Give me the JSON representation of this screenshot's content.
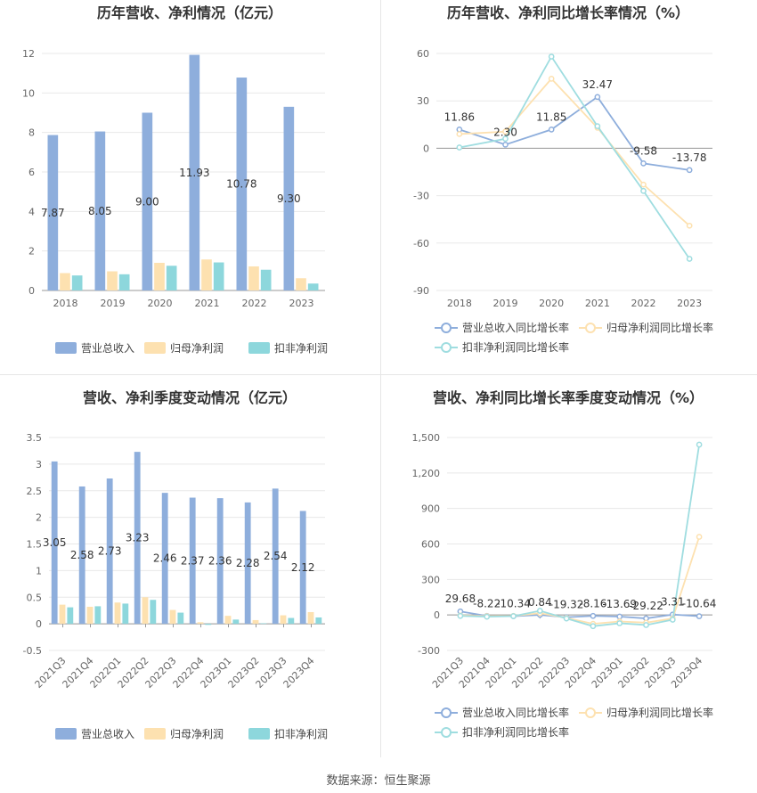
{
  "source": "数据来源：恒生聚源",
  "colors": {
    "revenue": "#8eaedc",
    "net_profit": "#fde1b0",
    "deducted": "#8dd7dc",
    "grid": "#e8e8e8",
    "axis_text": "#666666",
    "title": "#333333"
  },
  "chart_data": [
    {
      "type": "bar",
      "title": "历年营收、净利情况（亿元）",
      "categories": [
        "2018",
        "2019",
        "2020",
        "2021",
        "2022",
        "2023"
      ],
      "ylim": [
        0,
        12
      ],
      "yticks": [
        0,
        2,
        4,
        6,
        8,
        10,
        12
      ],
      "ytick_labels": [
        "0",
        "2",
        "4",
        "6",
        "8",
        "10",
        "12"
      ],
      "series": [
        {
          "name": "营业总收入",
          "values": [
            7.87,
            8.05,
            9.0,
            11.93,
            10.78,
            9.3
          ],
          "labels": [
            "7.87",
            "8.05",
            "9.00",
            "11.93",
            "10.78",
            "9.30"
          ]
        },
        {
          "name": "归母净利润",
          "values": [
            0.88,
            0.97,
            1.4,
            1.57,
            1.22,
            0.62
          ]
        },
        {
          "name": "扣非净利润",
          "values": [
            0.76,
            0.82,
            1.25,
            1.42,
            1.05,
            0.35
          ]
        }
      ],
      "legend": "bottom"
    },
    {
      "type": "line",
      "title": "历年营收、净利同比增长率情况（%）",
      "categories": [
        "2018",
        "2019",
        "2020",
        "2021",
        "2022",
        "2023"
      ],
      "ylim": [
        -90,
        60
      ],
      "yticks": [
        -90,
        -60,
        -30,
        0,
        30,
        60
      ],
      "ytick_labels": [
        "-90",
        "-60",
        "-30",
        "0",
        "30",
        "60"
      ],
      "series": [
        {
          "name": "营业总收入同比增长率",
          "values": [
            11.86,
            2.3,
            11.85,
            32.47,
            -9.58,
            -13.78
          ],
          "labels": [
            "11.86",
            "2.30",
            "11.85",
            "32.47",
            "-9.58",
            "-13.78"
          ]
        },
        {
          "name": "归母净利润同比增长率",
          "values": [
            9.0,
            10.5,
            44.0,
            13.0,
            -23.0,
            -49.0
          ]
        },
        {
          "name": "扣非净利润同比增长率",
          "values": [
            0.5,
            6.0,
            58.0,
            14.0,
            -27.0,
            -70.0
          ]
        }
      ],
      "legend": "bottom"
    },
    {
      "type": "bar",
      "title": "营收、净利季度变动情况（亿元）",
      "categories": [
        "2021Q3",
        "2021Q4",
        "2022Q1",
        "2022Q2",
        "2022Q3",
        "2022Q4",
        "2023Q1",
        "2023Q2",
        "2023Q3",
        "2023Q4"
      ],
      "ylim": [
        -0.5,
        3.5
      ],
      "yticks": [
        -0.5,
        0,
        0.5,
        1,
        1.5,
        2,
        2.5,
        3,
        3.5
      ],
      "ytick_labels": [
        "-0.5",
        "0",
        "0.5",
        "1",
        "1.5",
        "2",
        "2.5",
        "3",
        "3.5"
      ],
      "series": [
        {
          "name": "营业总收入",
          "values": [
            3.05,
            2.58,
            2.73,
            3.23,
            2.46,
            2.37,
            2.36,
            2.28,
            2.54,
            2.12
          ],
          "labels": [
            "3.05",
            "2.58",
            "2.73",
            "3.23",
            "2.46",
            "2.37",
            "2.36",
            "2.28",
            "2.54",
            "2.12"
          ]
        },
        {
          "name": "归母净利润",
          "values": [
            0.36,
            0.32,
            0.4,
            0.5,
            0.26,
            0.03,
            0.15,
            0.07,
            0.16,
            0.22
          ]
        },
        {
          "name": "扣非净利润",
          "values": [
            0.31,
            0.33,
            0.38,
            0.45,
            0.21,
            -0.02,
            0.08,
            0.01,
            0.11,
            0.12
          ]
        }
      ],
      "legend": "bottom"
    },
    {
      "type": "line",
      "title": "营收、净利同比增长率季度变动情况（%）",
      "categories": [
        "2021Q3",
        "2021Q4",
        "2022Q1",
        "2022Q2",
        "2022Q3",
        "2022Q4",
        "2023Q1",
        "2023Q2",
        "2023Q3",
        "2023Q4"
      ],
      "ylim": [
        -300,
        1500
      ],
      "yticks": [
        -300,
        0,
        300,
        600,
        900,
        1200,
        1500
      ],
      "ytick_labels": [
        "-300",
        "0",
        "300",
        "600",
        "900",
        "1,200",
        "1,500"
      ],
      "series": [
        {
          "name": "营业总收入同比增长率",
          "values": [
            29.68,
            -8.22,
            -10.34,
            0.84,
            -19.32,
            -8.16,
            -13.69,
            -29.22,
            3.31,
            -10.64
          ],
          "labels": [
            "29.68",
            "-8.22",
            "-10.34",
            "0.84",
            "-19.32",
            "-8.16",
            "-13.69",
            "-29.22",
            "3.31",
            "-10.64"
          ]
        },
        {
          "name": "归母净利润同比增长率",
          "values": [
            -5,
            -10,
            -8,
            15,
            -25,
            -75,
            -55,
            -65,
            -30,
            660
          ]
        },
        {
          "name": "扣非净利润同比增长率",
          "values": [
            -8,
            -15,
            -10,
            35,
            -30,
            -95,
            -70,
            -85,
            -40,
            1440
          ]
        }
      ],
      "legend": "bottom"
    }
  ]
}
